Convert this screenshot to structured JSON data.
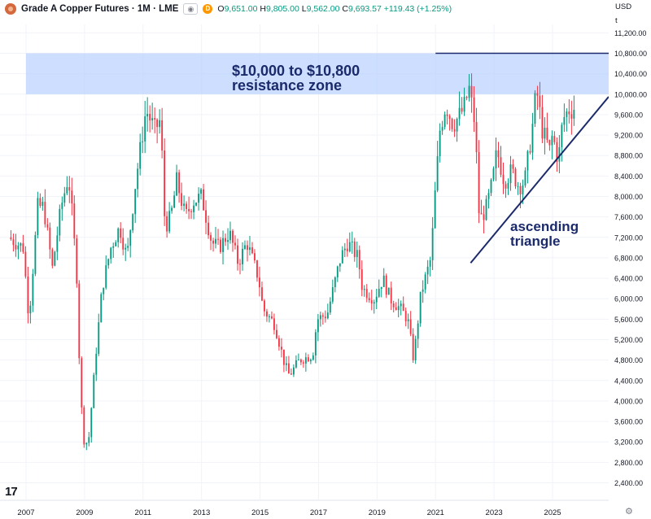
{
  "header": {
    "title": "Grade A Copper Futures · 1M · LME",
    "eye_icon": "eye-icon",
    "delay_badge": "D",
    "ohlc": [
      {
        "label": "O",
        "value": "9,651.00"
      },
      {
        "label": "H",
        "value": "9,805.00"
      },
      {
        "label": "L",
        "value": "9,562.00"
      },
      {
        "label": "C",
        "value": "9,693.57"
      },
      {
        "label": "",
        "value": "+119.43 (+1.25%)"
      }
    ]
  },
  "axis": {
    "currency": "USD",
    "unit": "t"
  },
  "colors": {
    "up": "#089981",
    "down": "#f23645",
    "zone": "#bcd3ff",
    "annotation": "#1b2a6b"
  },
  "chart_data": {
    "type": "candlestick",
    "title": "",
    "xlabel": "",
    "ylabel": "",
    "ylim": [
      2200,
      11600
    ],
    "y_ticks": [
      "11,200.00",
      "10,800.00",
      "10,400.00",
      "10,000.00",
      "9,600.00",
      "9,200.00",
      "8,800.00",
      "8,400.00",
      "8,000.00",
      "7,600.00",
      "7,200.00",
      "6,800.00",
      "6,400.00",
      "6,000.00",
      "5,600.00",
      "5,200.00",
      "4,800.00",
      "4,400.00",
      "4,000.00",
      "3,600.00",
      "3,200.00",
      "2,800.00",
      "2,400.00"
    ],
    "x_ticks": [
      "2007",
      "2009",
      "2011",
      "2013",
      "2015",
      "2017",
      "2019",
      "2021",
      "2023",
      "2025"
    ],
    "x_range": [
      2006.95,
      2026.95
    ],
    "anchors": [
      [
        2006.4,
        7200
      ],
      [
        2006.9,
        7000
      ],
      [
        2007.1,
        5600
      ],
      [
        2007.4,
        7800
      ],
      [
        2007.6,
        7800
      ],
      [
        2007.9,
        6600
      ],
      [
        2008.2,
        7800
      ],
      [
        2008.45,
        8400
      ],
      [
        2008.6,
        7500
      ],
      [
        2008.75,
        6300
      ],
      [
        2008.85,
        4200
      ],
      [
        2009.0,
        3100
      ],
      [
        2009.15,
        3300
      ],
      [
        2009.4,
        5000
      ],
      [
        2009.6,
        6200
      ],
      [
        2009.9,
        7000
      ],
      [
        2010.2,
        7400
      ],
      [
        2010.45,
        6800
      ],
      [
        2010.75,
        8300
      ],
      [
        2011.1,
        9700
      ],
      [
        2011.4,
        9300
      ],
      [
        2011.6,
        9500
      ],
      [
        2011.75,
        7400
      ],
      [
        2011.95,
        7600
      ],
      [
        2012.15,
        8300
      ],
      [
        2012.45,
        7600
      ],
      [
        2012.7,
        7900
      ],
      [
        2013.0,
        8000
      ],
      [
        2013.35,
        7100
      ],
      [
        2013.6,
        7000
      ],
      [
        2013.95,
        7300
      ],
      [
        2014.25,
        6700
      ],
      [
        2014.55,
        7100
      ],
      [
        2014.95,
        6400
      ],
      [
        2015.1,
        5800
      ],
      [
        2015.5,
        5500
      ],
      [
        2015.85,
        4700
      ],
      [
        2016.0,
        4500
      ],
      [
        2016.35,
        4800
      ],
      [
        2016.8,
        4900
      ],
      [
        2016.95,
        5600
      ],
      [
        2017.3,
        5700
      ],
      [
        2017.75,
        6800
      ],
      [
        2018.0,
        7100
      ],
      [
        2018.35,
        6800
      ],
      [
        2018.5,
        6200
      ],
      [
        2018.9,
        6000
      ],
      [
        2019.2,
        6400
      ],
      [
        2019.45,
        6000
      ],
      [
        2019.8,
        5800
      ],
      [
        2020.05,
        5600
      ],
      [
        2020.25,
        4800
      ],
      [
        2020.5,
        6100
      ],
      [
        2020.85,
        6800
      ],
      [
        2020.95,
        7800
      ],
      [
        2021.15,
        9300
      ],
      [
        2021.35,
        9800
      ],
      [
        2021.6,
        9400
      ],
      [
        2021.95,
        9700
      ],
      [
        2022.15,
        10100
      ],
      [
        2022.35,
        9400
      ],
      [
        2022.5,
        7500
      ],
      [
        2022.75,
        7800
      ],
      [
        2022.95,
        8300
      ],
      [
        2023.1,
        8900
      ],
      [
        2023.35,
        8300
      ],
      [
        2023.6,
        8500
      ],
      [
        2023.85,
        8200
      ],
      [
        2024.05,
        8300
      ],
      [
        2024.3,
        9300
      ],
      [
        2024.45,
        10100
      ],
      [
        2024.65,
        9300
      ],
      [
        2024.9,
        8900
      ],
      [
        2025.0,
        9200
      ],
      [
        2025.2,
        8700
      ],
      [
        2025.35,
        9500
      ],
      [
        2025.55,
        9700
      ],
      [
        2025.75,
        9693.57
      ]
    ],
    "annotations": [
      {
        "type": "zone",
        "text_line1": "$10,000 to $10,800",
        "text_line2": "resistance zone",
        "from": 10000,
        "to": 10800
      },
      {
        "type": "line",
        "label": "resistance-line",
        "x1": 2021.0,
        "y1": 10800,
        "x2": 2026.95,
        "y2": 10800
      },
      {
        "type": "trendline",
        "text_line1": "ascending",
        "text_line2": "triangle",
        "x1": 2022.2,
        "y1": 6700,
        "x2": 2026.95,
        "y2": 9950
      }
    ]
  }
}
